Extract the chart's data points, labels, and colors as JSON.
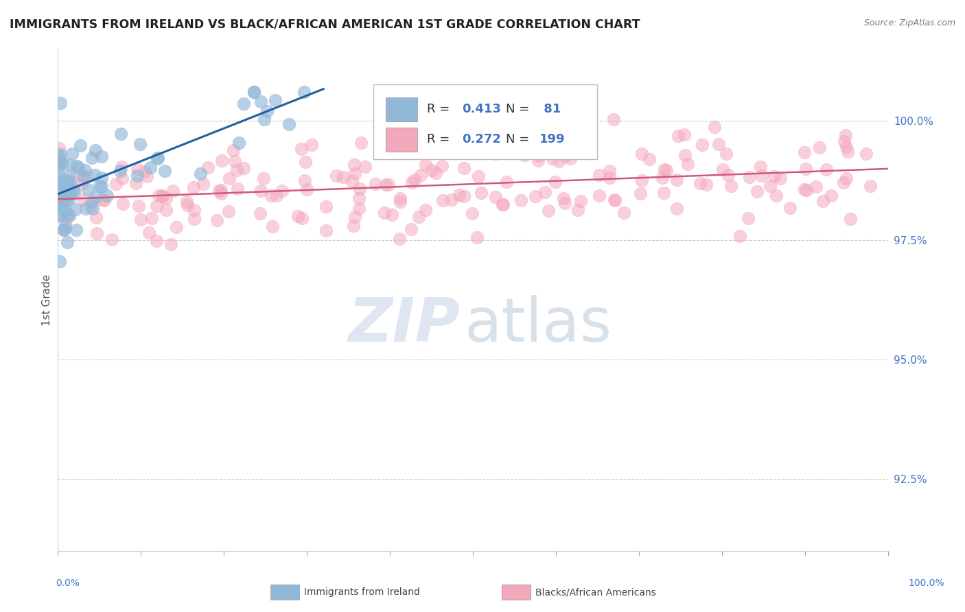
{
  "title": "IMMIGRANTS FROM IRELAND VS BLACK/AFRICAN AMERICAN 1ST GRADE CORRELATION CHART",
  "source": "Source: ZipAtlas.com",
  "ylabel": "1st Grade",
  "yticks": [
    92.5,
    95.0,
    97.5,
    100.0
  ],
  "ytick_labels": [
    "92.5%",
    "95.0%",
    "97.5%",
    "100.0%"
  ],
  "xlim": [
    0.0,
    100.0
  ],
  "ylim": [
    91.0,
    101.5
  ],
  "blue_R": 0.413,
  "blue_N": 81,
  "pink_R": 0.272,
  "pink_N": 199,
  "blue_color": "#92b8d8",
  "pink_color": "#f4a8bc",
  "blue_line_color": "#2060a0",
  "pink_line_color": "#d05878",
  "legend_label_blue": "Immigrants from Ireland",
  "legend_label_pink": "Blacks/African Americans",
  "tick_color": "#4472C4",
  "watermark_color": "#c8d8e8"
}
